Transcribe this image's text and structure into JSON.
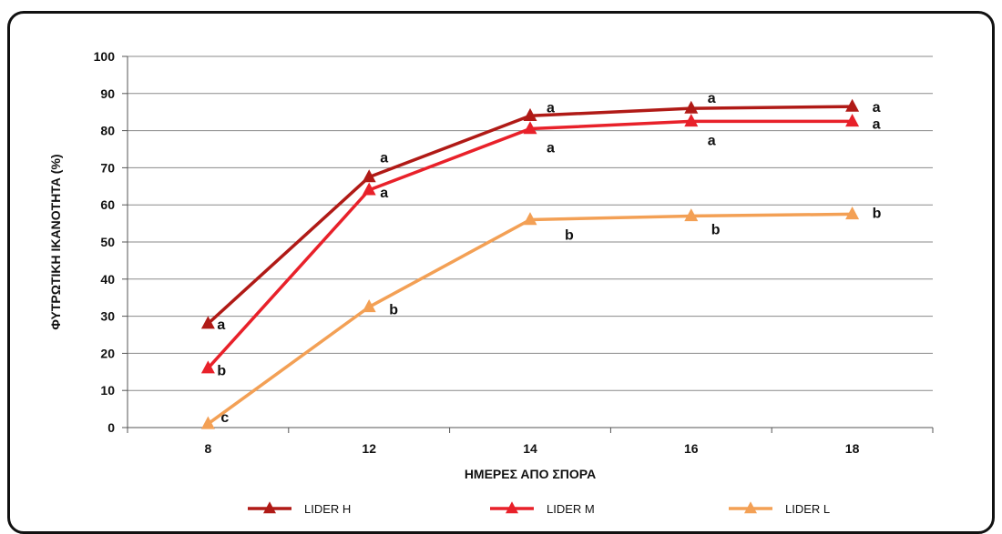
{
  "chart_data": {
    "type": "line",
    "x": [
      8,
      12,
      14,
      16,
      18
    ],
    "categories": [
      "8",
      "12",
      "14",
      "16",
      "18"
    ],
    "xlabel": "ΗΜΕΡΕΣ ΑΠΟ ΣΠΟΡΑ",
    "ylabel": "ΦΥΤΡΩΤΙΚΗ ΙΚΑΝΟΤΗΤΑ (%)",
    "ylim": [
      0,
      100
    ],
    "yticks": [
      0,
      10,
      20,
      30,
      40,
      50,
      60,
      70,
      80,
      90,
      100
    ],
    "grid": true,
    "legend_position": "bottom",
    "series": [
      {
        "name": "LIDER H",
        "color": "#b01a16",
        "values": [
          28,
          67.5,
          84,
          86,
          86.5
        ],
        "labels": [
          "a",
          "a",
          "a",
          "a",
          "a"
        ]
      },
      {
        "name": "LIDER M",
        "color": "#e8212a",
        "values": [
          16,
          64,
          80.5,
          82.5,
          82.5
        ],
        "labels": [
          "b",
          "a",
          "a",
          "a",
          "a"
        ]
      },
      {
        "name": "LIDER L",
        "color": "#f3a055",
        "values": [
          1,
          32.5,
          56,
          57,
          57.5
        ],
        "labels": [
          "c",
          "b",
          "b",
          "b",
          "b"
        ]
      }
    ]
  }
}
